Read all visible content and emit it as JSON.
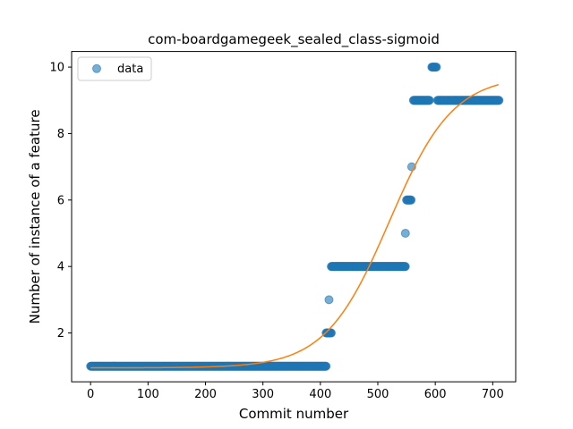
{
  "chart_data": {
    "type": "scatter",
    "title": "com-boardgamegeek_sealed_class-sigmoid",
    "xlabel": "Commit number",
    "ylabel": "Number of instance of a feature",
    "xlim": [
      -33,
      740
    ],
    "ylim": [
      0.53,
      10.47
    ],
    "xticks": [
      0,
      100,
      200,
      300,
      400,
      500,
      600,
      700
    ],
    "yticks": [
      2,
      4,
      6,
      8,
      10
    ],
    "legend": {
      "position": "top-left",
      "entries": [
        "data"
      ]
    },
    "grid": false,
    "colors": {
      "data": "#1f77b4",
      "fit": "#ff7f0e"
    },
    "series": [
      {
        "name": "data",
        "kind": "points",
        "segments": [
          {
            "x_start": 0,
            "x_end": 410,
            "y": 1
          },
          {
            "x_start": 410,
            "x_end": 419,
            "y": 2
          },
          {
            "x_start": 419,
            "x_end": 548,
            "y": 4
          },
          {
            "x_start": 550,
            "x_end": 558,
            "y": 6
          },
          {
            "x_start": 562,
            "x_end": 590,
            "y": 9
          },
          {
            "x_start": 594,
            "x_end": 602,
            "y": 10
          },
          {
            "x_start": 604,
            "x_end": 711,
            "y": 9
          }
        ],
        "points": [
          {
            "x": 415,
            "y": 3
          },
          {
            "x": 548,
            "y": 5
          },
          {
            "x": 559,
            "y": 7
          }
        ]
      },
      {
        "kind": "line",
        "sigmoid": {
          "L": 8.8,
          "x0": 520,
          "k": 0.018,
          "b": 0.95
        },
        "x_range": [
          0,
          711
        ]
      }
    ]
  }
}
